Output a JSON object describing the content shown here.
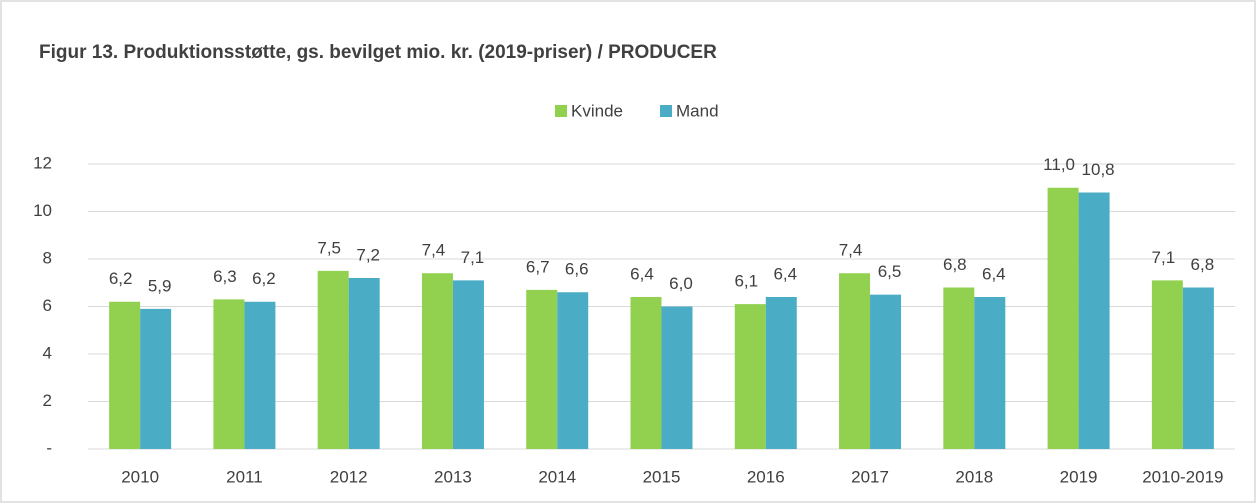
{
  "chart_data": {
    "type": "bar",
    "title": "Figur 13. Produktionsstøtte, gs. bevilget mio. kr. (2019-priser) / PRODUCER",
    "categories": [
      "2010",
      "2011",
      "2012",
      "2013",
      "2014",
      "2015",
      "2016",
      "2017",
      "2018",
      "2019",
      "2010-2019"
    ],
    "series": [
      {
        "name": "Kvinde",
        "color": "#92d050",
        "values": [
          6.2,
          6.3,
          7.5,
          7.4,
          6.7,
          6.4,
          6.1,
          7.4,
          6.8,
          11.0,
          7.1
        ],
        "value_labels": [
          "6,2",
          "6,3",
          "7,5",
          "7,4",
          "6,7",
          "6,4",
          "6,1",
          "7,4",
          "6,8",
          "11,0",
          "7,1"
        ]
      },
      {
        "name": "Mand",
        "color": "#4bacc6",
        "values": [
          5.9,
          6.2,
          7.2,
          7.1,
          6.6,
          6.0,
          6.4,
          6.5,
          6.4,
          10.8,
          6.8
        ],
        "value_labels": [
          "5,9",
          "6,2",
          "7,2",
          "7,1",
          "6,6",
          "6,0",
          "6,4",
          "6,5",
          "6,4",
          "10,8",
          "6,8"
        ]
      }
    ],
    "ylim": [
      0,
      12
    ],
    "yticks": [
      {
        "value": 0,
        "label": "-"
      },
      2,
      4,
      6,
      8,
      10,
      12
    ],
    "grid": true,
    "legend": "top"
  }
}
